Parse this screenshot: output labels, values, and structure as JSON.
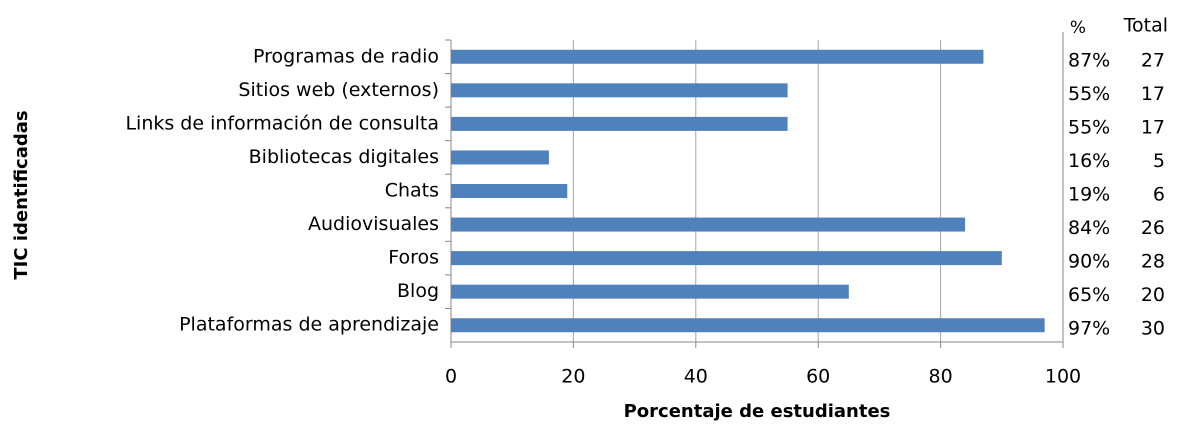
{
  "chart_data": {
    "type": "hbar",
    "categories": [
      "Programas de radio",
      "Sitios web (externos)",
      "Links de información de consulta",
      "Bibliotecas digitales",
      "Chats",
      "Audiovisuales",
      "Foros",
      "Blog",
      "Plataformas de aprendizaje"
    ],
    "values": [
      87,
      55,
      55,
      16,
      19,
      84,
      90,
      65,
      97
    ],
    "value_labels": [
      "87%",
      "55%",
      "55%",
      "16%",
      "19%",
      "84%",
      "90%",
      "65%",
      "97%"
    ],
    "totals": [
      27,
      17,
      17,
      5,
      6,
      26,
      28,
      20,
      30
    ],
    "table_headers": [
      "%",
      "Total"
    ],
    "color": "#4f81bd",
    "xlim": [
      0,
      100
    ],
    "xticks": [
      0,
      20,
      40,
      60,
      80,
      100
    ],
    "grid": true,
    "xlabel": "Porcentaje de estudiantes",
    "ylabel": "TIC identificadas"
  }
}
